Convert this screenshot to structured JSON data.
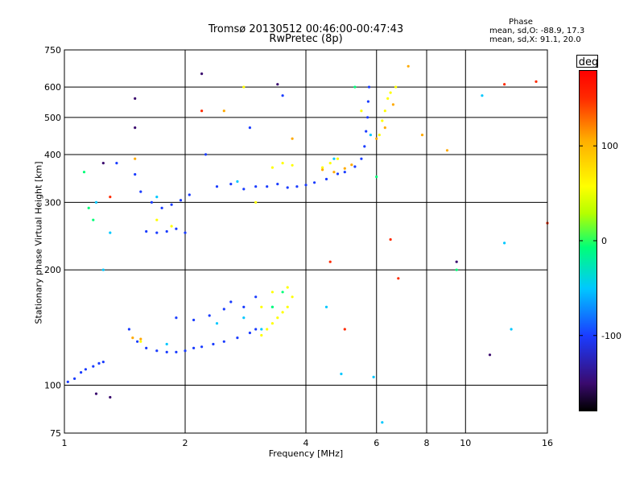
{
  "header": {
    "title_line1": "Tromsø 20130512 00:46:00-00:47:43",
    "title_line2": "RwPretec (8p)",
    "stats_heading": "Phase",
    "stats_o": "mean, sd,O: -88.9, 17.3",
    "stats_x": "mean, sd,X:  91.1, 20.0"
  },
  "colorbar": {
    "unit": "deg",
    "ticks": [
      "100",
      "0",
      "-100"
    ],
    "range": [
      -180,
      180
    ]
  },
  "colors": {
    "frame": "#000000",
    "background": "#ffffff",
    "phase_low": "#1a3cff",
    "phase_high": "#ffff00"
  },
  "chart_data": {
    "type": "scatter",
    "title": "Tromsø 20130512 00:46:00-00:47:43",
    "subtitle": "RwPretec (8p)",
    "xlabel": "Frequency [MHz]",
    "ylabel": "Stationary phase Virtual Height [km]",
    "x_scale": "log",
    "y_scale": "log",
    "xlim": [
      1,
      16
    ],
    "ylim": [
      75,
      750
    ],
    "x_ticks": [
      "1",
      "2",
      "4",
      "6",
      "8",
      "10",
      "16"
    ],
    "y_ticks": [
      "75",
      "100",
      "200",
      "300",
      "400",
      "500",
      "600",
      "750"
    ],
    "grid": true,
    "color_encoding": "phase",
    "series": [
      {
        "color": "#1a3cff",
        "points": [
          [
            1.02,
            102
          ],
          [
            1.06,
            104
          ],
          [
            1.1,
            108
          ],
          [
            1.13,
            110
          ],
          [
            1.18,
            112
          ],
          [
            1.22,
            114
          ],
          [
            1.25,
            115
          ],
          [
            1.45,
            140
          ],
          [
            1.52,
            130
          ],
          [
            1.6,
            125
          ],
          [
            1.7,
            123
          ],
          [
            1.8,
            122
          ],
          [
            1.9,
            122
          ],
          [
            2.0,
            123
          ],
          [
            2.1,
            125
          ],
          [
            2.2,
            126
          ],
          [
            2.35,
            128
          ],
          [
            2.5,
            130
          ],
          [
            2.7,
            133
          ],
          [
            2.9,
            137
          ],
          [
            3.0,
            140
          ],
          [
            1.9,
            150
          ],
          [
            2.1,
            148
          ],
          [
            2.3,
            152
          ],
          [
            2.5,
            158
          ],
          [
            2.6,
            165
          ],
          [
            2.8,
            160
          ],
          [
            3.0,
            170
          ],
          [
            1.55,
            320
          ],
          [
            1.65,
            300
          ],
          [
            1.75,
            290
          ],
          [
            1.85,
            296
          ],
          [
            1.95,
            304
          ],
          [
            2.05,
            314
          ],
          [
            1.6,
            252
          ],
          [
            1.7,
            250
          ],
          [
            1.8,
            252
          ],
          [
            1.9,
            256
          ],
          [
            2.0,
            250
          ],
          [
            2.4,
            330
          ],
          [
            2.6,
            335
          ],
          [
            2.8,
            325
          ],
          [
            3.0,
            330
          ],
          [
            3.2,
            330
          ],
          [
            3.4,
            335
          ],
          [
            3.6,
            328
          ],
          [
            3.8,
            330
          ],
          [
            4.0,
            333
          ],
          [
            4.2,
            338
          ],
          [
            4.5,
            345
          ],
          [
            4.8,
            356
          ],
          [
            5.0,
            360
          ],
          [
            5.3,
            372
          ],
          [
            5.5,
            390
          ],
          [
            5.6,
            420
          ],
          [
            5.65,
            460
          ],
          [
            5.7,
            500
          ],
          [
            5.72,
            550
          ],
          [
            5.75,
            600
          ],
          [
            2.25,
            400
          ],
          [
            2.9,
            470
          ],
          [
            3.5,
            570
          ],
          [
            1.35,
            380
          ],
          [
            1.5,
            355
          ]
        ]
      },
      {
        "color": "#00c8ff",
        "points": [
          [
            1.8,
            128
          ],
          [
            2.4,
            145
          ],
          [
            2.8,
            150
          ],
          [
            3.1,
            140
          ],
          [
            3.3,
            160
          ],
          [
            1.7,
            310
          ],
          [
            2.7,
            340
          ],
          [
            4.5,
            160
          ],
          [
            4.9,
            107
          ],
          [
            5.9,
            105
          ],
          [
            6.2,
            80
          ],
          [
            11.0,
            570
          ],
          [
            12.5,
            235
          ],
          [
            13.0,
            140
          ],
          [
            1.3,
            250
          ],
          [
            1.25,
            200
          ],
          [
            1.2,
            300
          ],
          [
            4.7,
            390
          ],
          [
            5.8,
            450
          ]
        ]
      },
      {
        "color": "#00ff78",
        "points": [
          [
            1.12,
            360
          ],
          [
            1.15,
            290
          ],
          [
            1.18,
            270
          ],
          [
            3.3,
            160
          ],
          [
            3.5,
            175
          ],
          [
            5.3,
            600
          ],
          [
            6.0,
            350
          ],
          [
            9.5,
            200
          ]
        ]
      },
      {
        "color": "#ffff00",
        "points": [
          [
            3.1,
            135
          ],
          [
            3.2,
            140
          ],
          [
            3.3,
            145
          ],
          [
            3.4,
            150
          ],
          [
            3.5,
            155
          ],
          [
            3.6,
            160
          ],
          [
            3.7,
            170
          ],
          [
            3.6,
            180
          ],
          [
            3.3,
            175
          ],
          [
            3.1,
            160
          ],
          [
            1.7,
            270
          ],
          [
            1.85,
            260
          ],
          [
            3.0,
            300
          ],
          [
            3.3,
            370
          ],
          [
            3.5,
            380
          ],
          [
            3.7,
            375
          ],
          [
            4.4,
            370
          ],
          [
            4.6,
            380
          ],
          [
            4.8,
            390
          ],
          [
            6.1,
            450
          ],
          [
            6.3,
            520
          ],
          [
            6.5,
            580
          ],
          [
            6.7,
            600
          ],
          [
            6.2,
            490
          ],
          [
            6.4,
            560
          ],
          [
            5.5,
            520
          ],
          [
            1.55,
            130
          ],
          [
            2.8,
            600
          ]
        ]
      },
      {
        "color": "#ffaa00",
        "points": [
          [
            1.48,
            133
          ],
          [
            1.55,
            132
          ],
          [
            4.4,
            365
          ],
          [
            4.7,
            360
          ],
          [
            5.0,
            368
          ],
          [
            5.2,
            376
          ],
          [
            6.0,
            440
          ],
          [
            6.3,
            470
          ],
          [
            6.6,
            540
          ],
          [
            7.2,
            680
          ],
          [
            7.8,
            450
          ],
          [
            9.0,
            410
          ],
          [
            3.7,
            440
          ],
          [
            2.5,
            520
          ],
          [
            1.5,
            390
          ]
        ]
      },
      {
        "color": "#ff2a00",
        "points": [
          [
            2.2,
            520
          ],
          [
            4.6,
            210
          ],
          [
            5.0,
            140
          ],
          [
            6.5,
            240
          ],
          [
            6.8,
            190
          ],
          [
            12.5,
            610
          ],
          [
            15.0,
            620
          ],
          [
            16.0,
            265
          ],
          [
            1.3,
            310
          ]
        ]
      },
      {
        "color": "#3a0a6e",
        "points": [
          [
            1.5,
            560
          ],
          [
            1.5,
            470
          ],
          [
            9.5,
            210
          ],
          [
            1.25,
            380
          ],
          [
            11.5,
            120
          ],
          [
            1.2,
            95
          ],
          [
            1.3,
            93
          ],
          [
            3.4,
            610
          ],
          [
            2.2,
            650
          ]
        ]
      }
    ]
  }
}
